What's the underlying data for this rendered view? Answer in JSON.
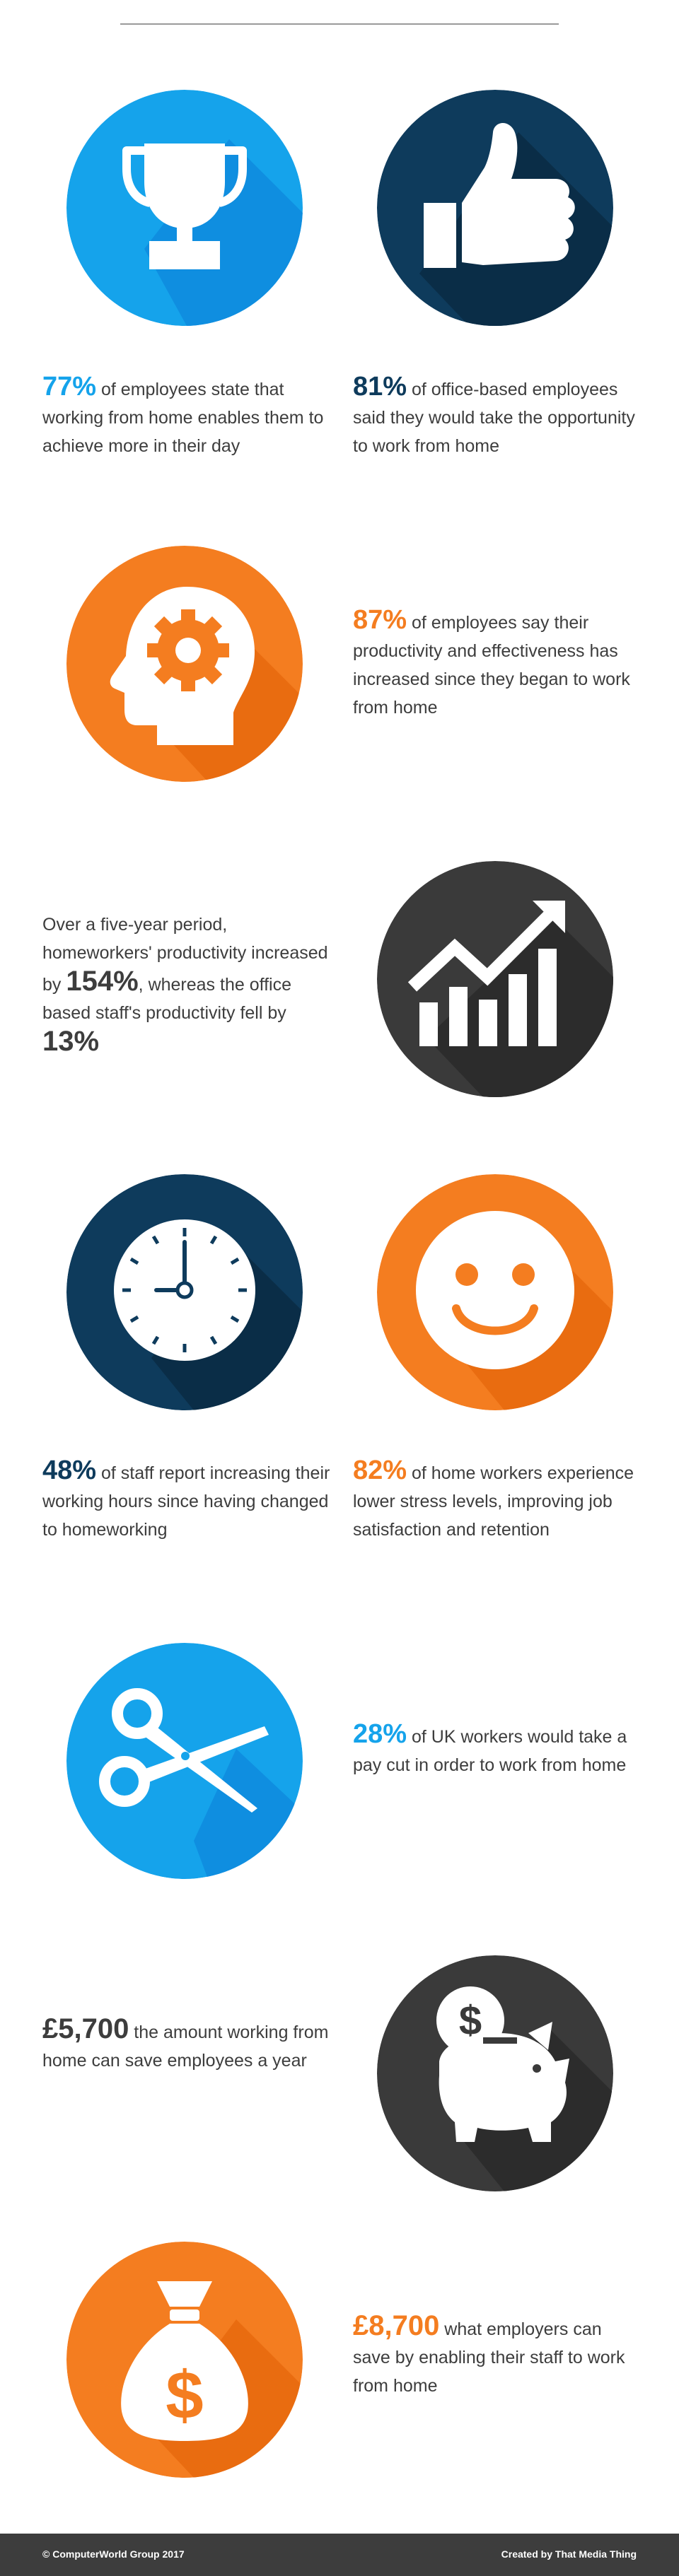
{
  "colors": {
    "blue": "#15a3eb",
    "navy": "#0e3b5c",
    "orange": "#f47d20",
    "charcoal": "#3a3a3a",
    "text": "#3d3d3d"
  },
  "stats": {
    "achieve": {
      "num": "77%",
      "text": "of employees state that working from home enables them to achieve more in their day",
      "icon": "trophy-icon"
    },
    "take_opportunity": {
      "num": "81%",
      "text": "of office-based employees said they would take the opportunity to work from home",
      "icon": "thumbs-up-icon"
    },
    "productivity": {
      "num": "87%",
      "text": "of employees say their productivity and effectiveness has increased since they began to work from home",
      "icon": "head-gear-icon"
    },
    "five_year": {
      "prefix": "Over a five-year period, homeworkers' productivity increased by",
      "num1": "154%",
      "middle": ", whereas the office based staff's productivity fell by",
      "num2": "13%",
      "icon": "growth-chart-icon"
    },
    "hours": {
      "num": "48%",
      "text": "of staff report increasing their working hours since having changed to homeworking",
      "icon": "clock-icon"
    },
    "stress": {
      "num": "82%",
      "text": "of home workers experience lower stress levels, improving job satisfaction and retention",
      "icon": "smiley-icon"
    },
    "pay_cut": {
      "num": "28%",
      "text": "of UK workers would take a pay cut in order to work from home",
      "icon": "scissors-icon"
    },
    "employee_saving": {
      "num": "£5,700",
      "text": "the amount working from home can save employees a year",
      "icon": "piggy-bank-icon"
    },
    "employer_saving": {
      "num": "£8,700",
      "text": "what employers can save by enabling their staff to work from home",
      "icon": "money-bag-icon"
    }
  },
  "footer": {
    "left": "© ComputerWorld Group 2017",
    "right": "Created by That Media Thing"
  }
}
